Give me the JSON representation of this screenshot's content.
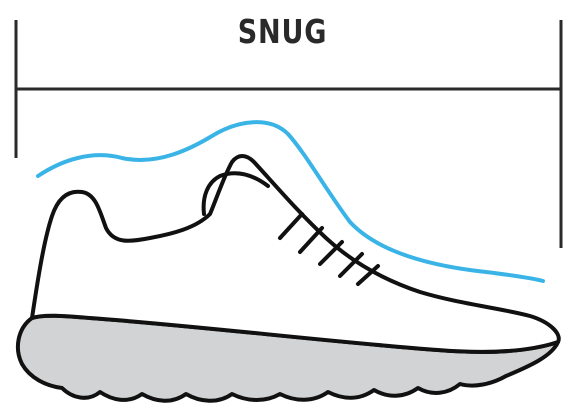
{
  "diagram": {
    "fit_label": "SNUG",
    "colors": {
      "outline": "#111111",
      "fit_curve": "#3ab4e6",
      "sole_fill": "#d1d3d4",
      "measure_line": "#2a2a2a"
    }
  }
}
